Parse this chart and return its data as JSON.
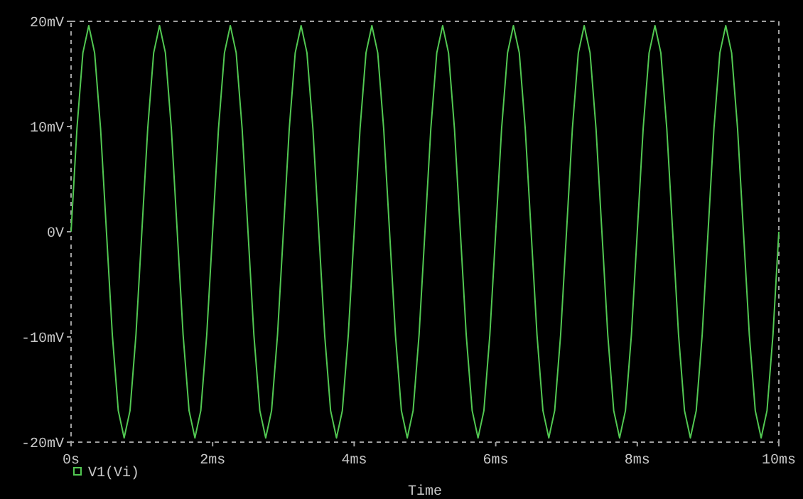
{
  "chart_data": {
    "type": "line",
    "xlabel": "Time",
    "legend": "bottom left",
    "marker": "none",
    "line_style": "solid",
    "grid": false,
    "xlim": [
      0,
      10
    ],
    "xticks": [
      {
        "value": 0,
        "label": "0s"
      },
      {
        "value": 2,
        "label": "2ms"
      },
      {
        "value": 4,
        "label": "4ms"
      },
      {
        "value": 6,
        "label": "6ms"
      },
      {
        "value": 8,
        "label": "8ms"
      },
      {
        "value": 10,
        "label": "10ms"
      }
    ],
    "ylim": [
      -20,
      20
    ],
    "yticks": [
      {
        "value": -20,
        "label": "-20mV"
      },
      {
        "value": -10,
        "label": "-10mV"
      },
      {
        "value": 0,
        "label": "0V"
      },
      {
        "value": 10,
        "label": "10mV"
      },
      {
        "value": 20,
        "label": "20mV"
      }
    ],
    "series": [
      {
        "name": "V1(Vi)",
        "color": "#52c852",
        "x": [
          0,
          0.083,
          0.167,
          0.25,
          0.333,
          0.417,
          0.5,
          0.583,
          0.667,
          0.75,
          0.833,
          0.917,
          1,
          1.083,
          1.167,
          1.25,
          1.333,
          1.417,
          1.5,
          1.583,
          1.667,
          1.75,
          1.833,
          1.917,
          2,
          2.083,
          2.167,
          2.25,
          2.333,
          2.417,
          2.5,
          2.583,
          2.667,
          2.75,
          2.833,
          2.917,
          3,
          3.083,
          3.167,
          3.25,
          3.333,
          3.417,
          3.5,
          3.583,
          3.667,
          3.75,
          3.833,
          3.917,
          4,
          4.083,
          4.167,
          4.25,
          4.333,
          4.417,
          4.5,
          4.583,
          4.667,
          4.75,
          4.833,
          4.917,
          5,
          5.083,
          5.167,
          5.25,
          5.333,
          5.417,
          5.5,
          5.583,
          5.667,
          5.75,
          5.833,
          5.917,
          6,
          6.083,
          6.167,
          6.25,
          6.333,
          6.417,
          6.5,
          6.583,
          6.667,
          6.75,
          6.833,
          6.917,
          7,
          7.083,
          7.167,
          7.25,
          7.333,
          7.417,
          7.5,
          7.583,
          7.667,
          7.75,
          7.833,
          7.917,
          8,
          8.083,
          8.167,
          8.25,
          8.333,
          8.417,
          8.5,
          8.583,
          8.667,
          8.75,
          8.833,
          8.917,
          9,
          9.083,
          9.167,
          9.25,
          9.333,
          9.417,
          9.5,
          9.583,
          9.667,
          9.75,
          9.833,
          9.917,
          10
        ],
        "values": [
          0,
          9.8,
          17,
          19.6,
          17,
          9.8,
          0,
          -9.8,
          -17,
          -19.6,
          -17,
          -9.8,
          0,
          9.8,
          17,
          19.6,
          17,
          9.8,
          0,
          -9.8,
          -17,
          -19.6,
          -17,
          -9.8,
          0,
          9.8,
          17,
          19.6,
          17,
          9.8,
          0,
          -9.8,
          -17,
          -19.6,
          -17,
          -9.8,
          0,
          9.8,
          17,
          19.6,
          17,
          9.8,
          0,
          -9.8,
          -17,
          -19.6,
          -17,
          -9.8,
          0,
          9.8,
          17,
          19.6,
          17,
          9.8,
          0,
          -9.8,
          -17,
          -19.6,
          -17,
          -9.8,
          0,
          9.8,
          17,
          19.6,
          17,
          9.8,
          0,
          -9.8,
          -17,
          -19.6,
          -17,
          -9.8,
          0,
          9.8,
          17,
          19.6,
          17,
          9.8,
          0,
          -9.8,
          -17,
          -19.6,
          -17,
          -9.8,
          0,
          9.8,
          17,
          19.6,
          17,
          9.8,
          0,
          -9.8,
          -17,
          -19.6,
          -17,
          -9.8,
          0,
          9.8,
          17,
          19.6,
          17,
          9.8,
          0,
          -9.8,
          -17,
          -19.6,
          -17,
          -9.8,
          0,
          9.8,
          17,
          19.6,
          17,
          9.8,
          0,
          -9.8,
          -17,
          -19.6,
          -17,
          -9.8,
          0
        ]
      }
    ]
  }
}
